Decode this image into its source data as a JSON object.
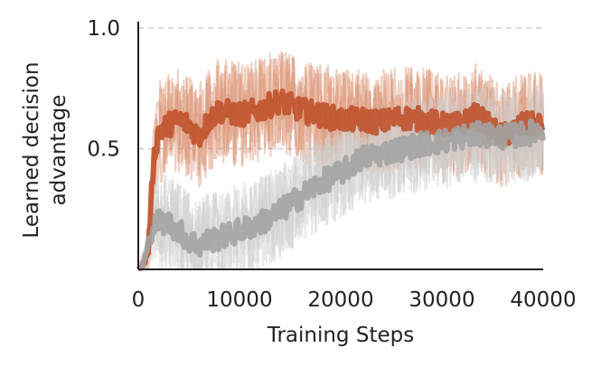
{
  "chart_data": {
    "type": "line",
    "title": "",
    "xlabel": "Training Steps",
    "ylabel": [
      "Learned decision",
      "advantage"
    ],
    "xlim": [
      0,
      40000
    ],
    "ylim": [
      0,
      1.0
    ],
    "xticks": [
      0,
      10000,
      20000,
      30000,
      40000
    ],
    "yticks": [
      0.5,
      1.0
    ],
    "ytick_labels": [
      "0.5",
      "1.0"
    ],
    "grid": "horizontal dashed",
    "legend": "none",
    "colors": {
      "orange_mean": "#c0522c",
      "orange_band": "#dc9475",
      "gray_mean": "#a3a3a3",
      "gray_band": "#cfcfcf",
      "axis": "#222222",
      "grid": "#cccccc"
    },
    "series": [
      {
        "color_key": "orange",
        "x": [
          0,
          500,
          1000,
          1500,
          2000,
          3000,
          4000,
          5000,
          6000,
          7000,
          8000,
          10000,
          12000,
          14000,
          15000,
          16000,
          18000,
          20000,
          22000,
          24000,
          26000,
          28000,
          30000,
          32000,
          33000,
          34000,
          35000,
          36000,
          38000,
          40000
        ],
        "y": [
          0.0,
          0.02,
          0.08,
          0.45,
          0.57,
          0.6,
          0.62,
          0.6,
          0.55,
          0.62,
          0.66,
          0.64,
          0.66,
          0.7,
          0.68,
          0.66,
          0.64,
          0.62,
          0.62,
          0.61,
          0.63,
          0.62,
          0.6,
          0.6,
          0.64,
          0.62,
          0.58,
          0.55,
          0.6,
          0.6
        ]
      },
      {
        "color_key": "gray",
        "x": [
          0,
          500,
          1000,
          1500,
          2000,
          3000,
          4000,
          5000,
          6000,
          7000,
          8000,
          10000,
          12000,
          14000,
          16000,
          18000,
          20000,
          22000,
          24000,
          26000,
          28000,
          30000,
          32000,
          34000,
          36000,
          38000,
          40000
        ],
        "y": [
          0.0,
          0.02,
          0.1,
          0.18,
          0.2,
          0.19,
          0.16,
          0.12,
          0.1,
          0.12,
          0.13,
          0.16,
          0.19,
          0.24,
          0.3,
          0.36,
          0.4,
          0.46,
          0.48,
          0.5,
          0.52,
          0.53,
          0.55,
          0.56,
          0.55,
          0.56,
          0.58
        ]
      }
    ]
  }
}
